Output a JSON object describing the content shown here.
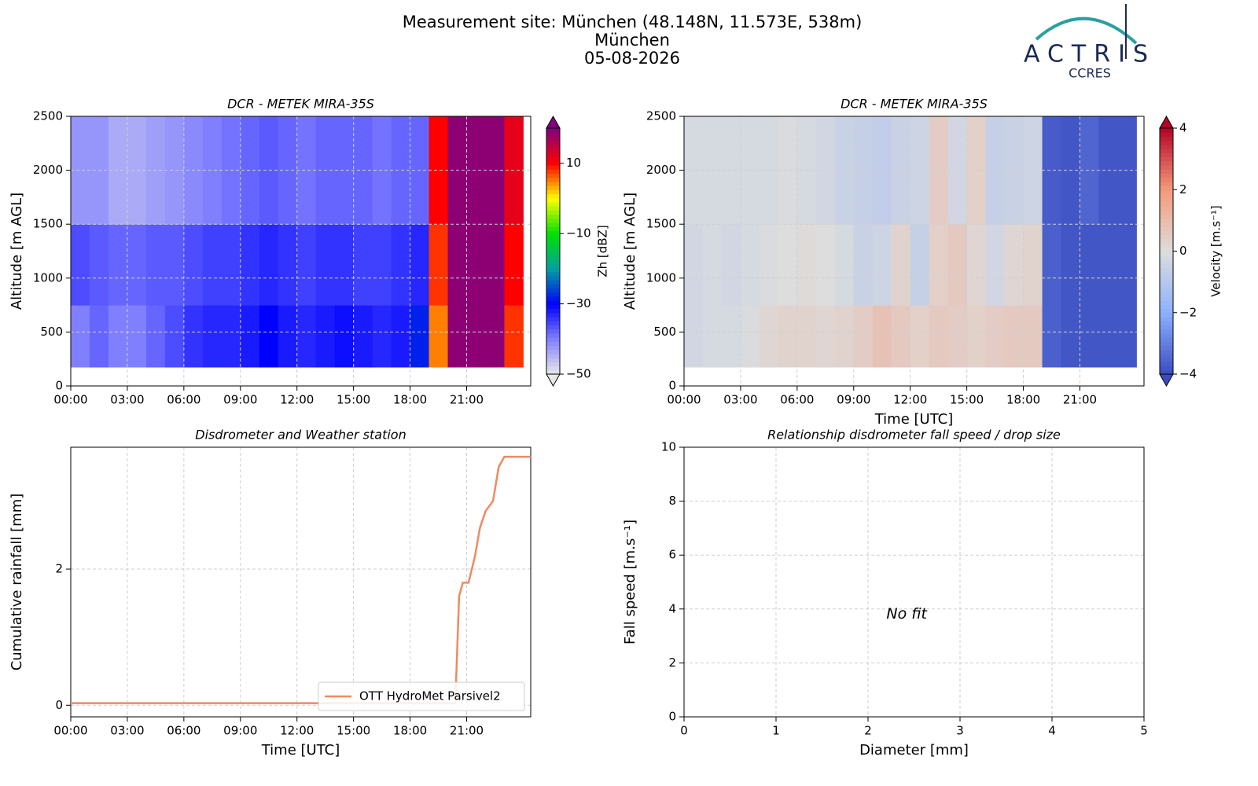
{
  "header": {
    "title_lines": [
      "Measurement site: München (48.148N, 11.573E, 538m)",
      "München",
      "05-08-2026"
    ],
    "logo": {
      "name": "ACTRIS",
      "subtitle": "CCRES"
    }
  },
  "chart_data": [
    {
      "type": "heatmap",
      "title": "DCR - METEK MIRA-35S",
      "ylabel": "Altitude [m AGL]",
      "xlim": [
        0,
        24.4
      ],
      "xticks": [
        {
          "value": 0,
          "label": "00:00"
        },
        {
          "value": 3,
          "label": "03:00"
        },
        {
          "value": 6,
          "label": "06:00"
        },
        {
          "value": 9,
          "label": "09:00"
        },
        {
          "value": 12,
          "label": "12:00"
        },
        {
          "value": 15,
          "label": "15:00"
        },
        {
          "value": 18,
          "label": "18:00"
        },
        {
          "value": 21,
          "label": "21:00"
        }
      ],
      "ylim": [
        0,
        2500
      ],
      "yticks": [
        0,
        500,
        1000,
        1500,
        2000,
        2500
      ],
      "grid": true,
      "x_edges": [
        0,
        1,
        2,
        3,
        4,
        5,
        6,
        7,
        8,
        9,
        10,
        11,
        12,
        13,
        14,
        15,
        16,
        17,
        18,
        19,
        20,
        21,
        22,
        23,
        24
      ],
      "y_edges": [
        175,
        750,
        1500,
        2500
      ],
      "z": [
        [
          -40,
          -38,
          -40,
          -40,
          -38,
          -36,
          -34,
          -33,
          -33,
          -32,
          -30,
          -32,
          -33,
          -32,
          -31,
          -32,
          -33,
          -32,
          -28,
          5,
          19,
          19,
          19,
          8
        ],
        [
          -36,
          -37,
          -38,
          -38,
          -37,
          -37,
          -36,
          -35,
          -35,
          -34,
          -33,
          -34,
          -35,
          -34,
          -34,
          -35,
          -35,
          -34,
          -33,
          8,
          19,
          19,
          19,
          10
        ],
        [
          -42,
          -42,
          -44,
          -44,
          -43,
          -42,
          -41,
          -40,
          -39,
          -38,
          -37,
          -38,
          -39,
          -38,
          -38,
          -38,
          -39,
          -38,
          -38,
          10,
          19,
          19,
          19,
          12
        ]
      ],
      "zlim": [
        -50,
        20
      ],
      "colorbar": {
        "label": "Zh [dBZ]",
        "ticks": [
          {
            "value": -50,
            "label": "−50"
          },
          {
            "value": -30,
            "label": "−30"
          },
          {
            "value": -10,
            "label": "−10"
          },
          10
        ],
        "colors": [
          "#e8e8e8",
          "#8080ff",
          "#0000ff",
          "#00a0a0",
          "#00e000",
          "#ffff00",
          "#ff0000",
          "#800080"
        ]
      }
    },
    {
      "type": "heatmap",
      "title": "DCR - METEK MIRA-35S",
      "ylabel": "Altitude [m AGL]",
      "xlabel": "Time [UTC]",
      "xlim": [
        0,
        24.4
      ],
      "xticks": [
        {
          "value": 0,
          "label": "00:00"
        },
        {
          "value": 3,
          "label": "03:00"
        },
        {
          "value": 6,
          "label": "06:00"
        },
        {
          "value": 9,
          "label": "09:00"
        },
        {
          "value": 12,
          "label": "12:00"
        },
        {
          "value": 15,
          "label": "15:00"
        },
        {
          "value": 18,
          "label": "18:00"
        },
        {
          "value": 21,
          "label": "21:00"
        }
      ],
      "ylim": [
        0,
        2500
      ],
      "yticks": [
        0,
        500,
        1000,
        1500,
        2000,
        2500
      ],
      "grid": true,
      "x_edges": [
        0,
        1,
        2,
        3,
        4,
        5,
        6,
        7,
        8,
        9,
        10,
        11,
        12,
        13,
        14,
        15,
        16,
        17,
        18,
        19,
        20,
        21,
        22,
        23,
        24
      ],
      "y_edges": [
        175,
        750,
        1500,
        2500
      ],
      "z": [
        [
          -0.3,
          -0.2,
          -0.2,
          -0.1,
          0.2,
          0.3,
          0.3,
          0.2,
          0.3,
          0.5,
          0.8,
          0.6,
          0.4,
          0.6,
          0.5,
          0.4,
          0.5,
          0.6,
          0.6,
          -3.6,
          -3.8,
          -3.8,
          -3.8,
          -3.8
        ],
        [
          -0.3,
          -0.2,
          -0.3,
          -0.2,
          -0.1,
          0,
          0.1,
          0,
          -0.2,
          -0.5,
          -0.4,
          0.3,
          -0.6,
          0.4,
          0.6,
          0.2,
          -0.3,
          0.2,
          0.3,
          -3.6,
          -3.8,
          -3.8,
          -3.8,
          -3.8
        ],
        [
          -0.2,
          -0.2,
          -0.2,
          -0.2,
          -0.2,
          -0.1,
          -0.2,
          -0.3,
          -0.5,
          -0.6,
          -0.7,
          -0.5,
          -0.4,
          0.5,
          -0.3,
          0.4,
          -0.6,
          -0.5,
          -0.4,
          -3.7,
          -3.8,
          -3.5,
          -3.8,
          -3.8
        ]
      ],
      "zlim": [
        -4,
        4
      ],
      "colorbar": {
        "label": "Velocity [m.s⁻¹]",
        "ticks": [
          {
            "value": -4,
            "label": "−4"
          },
          {
            "value": -2,
            "label": "−2"
          },
          0,
          2,
          4
        ],
        "colors": [
          "#3b4cc0",
          "#8db0fe",
          "#dddddd",
          "#f49a7b",
          "#b40426"
        ]
      }
    },
    {
      "type": "line",
      "title": "Disdrometer and Weather station",
      "ylabel": "Cumulative rainfall [mm]",
      "xlabel": "Time [UTC]",
      "xlim": [
        0,
        24.4
      ],
      "xticks": [
        {
          "value": 0,
          "label": "00:00"
        },
        {
          "value": 3,
          "label": "03:00"
        },
        {
          "value": 6,
          "label": "06:00"
        },
        {
          "value": 9,
          "label": "09:00"
        },
        {
          "value": 12,
          "label": "12:00"
        },
        {
          "value": 15,
          "label": "15:00"
        },
        {
          "value": 18,
          "label": "18:00"
        },
        {
          "value": 21,
          "label": "21:00"
        }
      ],
      "ylim": [
        -0.17,
        3.79
      ],
      "yticks": [
        0,
        2
      ],
      "grid": true,
      "legend": "lower right",
      "x": [
        0,
        20.4,
        20.6,
        20.8,
        21.1,
        21.45,
        21.7,
        22.0,
        22.4,
        22.7,
        23.0,
        24.4
      ],
      "series": [
        {
          "name": "OTT HydroMet Parsivel2",
          "color": "#ef8a62",
          "values": [
            0.03,
            0.03,
            1.6,
            1.8,
            1.8,
            2.2,
            2.6,
            2.85,
            3.0,
            3.5,
            3.65,
            3.65
          ]
        }
      ]
    },
    {
      "type": "scatter",
      "title": "Relationship disdrometer fall speed / drop size",
      "ylabel": "Fall speed [m.s⁻¹]",
      "xlabel": "Diameter [mm]",
      "xlim": [
        0,
        5
      ],
      "xticks": [
        0,
        1,
        2,
        3,
        4,
        5
      ],
      "ylim": [
        0,
        10
      ],
      "yticks": [
        0,
        2,
        4,
        6,
        8,
        10
      ],
      "grid": true,
      "annotation": "No fit"
    }
  ]
}
